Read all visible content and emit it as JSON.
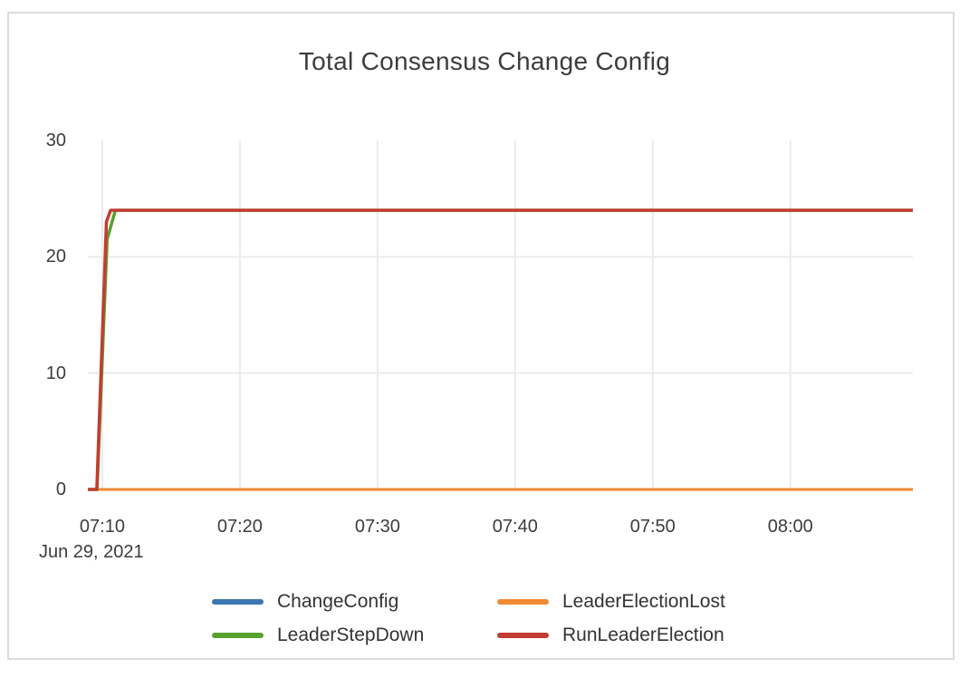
{
  "card": {
    "title": "Total Consensus Change Config"
  },
  "chart_data": {
    "type": "line",
    "title": "Total Consensus Change Config",
    "date_label": "Jun 29, 2021",
    "x_unit": "minutes since 07:00 on Jun 29, 2021",
    "xlim": [
      8.95,
      68.9
    ],
    "ylim": [
      0,
      30
    ],
    "x_ticks": [
      {
        "t": 10,
        "label": "07:10"
      },
      {
        "t": 20,
        "label": "07:20"
      },
      {
        "t": 30,
        "label": "07:30"
      },
      {
        "t": 40,
        "label": "07:40"
      },
      {
        "t": 50,
        "label": "07:50"
      },
      {
        "t": 60,
        "label": "08:00"
      }
    ],
    "y_ticks": [
      {
        "v": 0,
        "label": "0"
      },
      {
        "v": 10,
        "label": "10"
      },
      {
        "v": 20,
        "label": "20"
      },
      {
        "v": 30,
        "label": "30"
      }
    ],
    "grid": {
      "color": "#ebebeb",
      "horizontal_at": [
        10,
        20
      ],
      "vertical_at_x_ticks": true
    },
    "legend_position": "bottom",
    "series": [
      {
        "name": "ChangeConfig",
        "color": "#3B76AF",
        "stroke_width": 3,
        "summary": "constant 0 for entire range 07:09-08:09",
        "points": [
          [
            8.95,
            0
          ],
          [
            68.9,
            0
          ]
        ]
      },
      {
        "name": "LeaderElectionLost",
        "color": "#EF8A33",
        "stroke_width": 3,
        "summary": "constant 0 for entire range 07:09-08:09",
        "points": [
          [
            8.95,
            0
          ],
          [
            68.9,
            0
          ]
        ]
      },
      {
        "name": "LeaderStepDown",
        "color": "#56A12F",
        "stroke_width": 3.5,
        "summary": "0 until ~07:10, rises to 24 and stays at 24 until 08:09",
        "points": [
          [
            8.95,
            0
          ],
          [
            9.62,
            0
          ],
          [
            10.35,
            21.5
          ],
          [
            10.95,
            24
          ],
          [
            68.9,
            24
          ]
        ]
      },
      {
        "name": "RunLeaderElection",
        "color": "#C33C32",
        "stroke_width": 3.5,
        "summary": "0 until ~07:10, rises to 24 and stays at 24 until 08:09",
        "points": [
          [
            8.95,
            0
          ],
          [
            9.6,
            0
          ],
          [
            10.3,
            23
          ],
          [
            10.6,
            24
          ],
          [
            68.9,
            24
          ]
        ]
      }
    ]
  }
}
